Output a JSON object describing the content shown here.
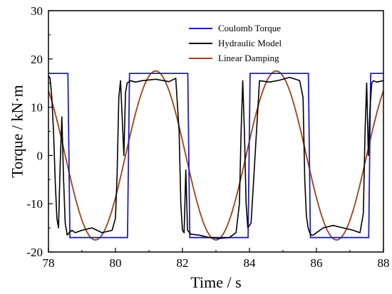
{
  "chart_data": {
    "type": "line",
    "title": "",
    "xlabel": "Time / s",
    "ylabel": "Torque / kN·m",
    "xlim": [
      78,
      88
    ],
    "ylim": [
      -20,
      30
    ],
    "xticks": [
      78,
      80,
      82,
      84,
      86,
      88
    ],
    "yticks": [
      -20,
      -10,
      0,
      10,
      20,
      30
    ],
    "grid": false,
    "legend_position": "top-right",
    "series": [
      {
        "name": "Coulomb Torque",
        "color": "#1f1fbf",
        "x": [
          78.0,
          78.58,
          78.64,
          80.36,
          80.42,
          82.16,
          82.22,
          83.96,
          84.02,
          85.76,
          85.82,
          87.56,
          87.62,
          88.0
        ],
        "y": [
          17,
          17,
          -17,
          -17,
          17,
          17,
          -17,
          -17,
          17,
          17,
          -17,
          -17,
          17,
          17
        ]
      },
      {
        "name": "Hydraulic Model",
        "color": "#000000",
        "x": [
          78.0,
          78.05,
          78.1,
          78.15,
          78.2,
          78.25,
          78.3,
          78.35,
          78.4,
          78.45,
          78.5,
          78.56,
          78.62,
          78.7,
          78.8,
          79.0,
          79.3,
          79.6,
          79.9,
          80.0,
          80.05,
          80.1,
          80.15,
          80.2,
          80.25,
          80.3,
          80.35,
          80.45,
          80.6,
          80.8,
          81.2,
          81.6,
          81.8,
          81.9,
          81.95,
          82.0,
          82.05,
          82.1,
          82.15,
          82.25,
          82.5,
          82.8,
          83.1,
          83.4,
          83.6,
          83.7,
          83.75,
          83.8,
          83.85,
          83.9,
          83.95,
          84.05,
          84.3,
          84.6,
          84.9,
          85.2,
          85.5,
          85.6,
          85.65,
          85.7,
          85.75,
          85.8,
          85.85,
          85.9,
          86.2,
          86.5,
          86.8,
          87.1,
          87.3,
          87.4,
          87.45,
          87.5,
          87.55,
          87.6,
          87.65,
          87.7,
          87.8,
          88.0
        ],
        "y": [
          16.5,
          16,
          12,
          5,
          -5,
          -13,
          -15,
          -2,
          8,
          -5,
          -14,
          -16.5,
          -16,
          -15.5,
          -16,
          -15.5,
          -15,
          -16,
          -15.5,
          -13,
          -4,
          12,
          15.5,
          8,
          0,
          13,
          15,
          15.5,
          15.2,
          15.5,
          15.8,
          15.3,
          16,
          5,
          -10,
          -15.5,
          -16,
          -3,
          -15.5,
          -16.3,
          -16.5,
          -17,
          -17.2,
          -17,
          -16,
          -10,
          5,
          15.5,
          5,
          -10,
          -15,
          -14,
          15.5,
          15.2,
          15.6,
          16.2,
          15.5,
          12,
          -5,
          -12.5,
          -15,
          -16,
          -16.5,
          -16.5,
          -15,
          -14.5,
          -15,
          -15.5,
          -16,
          -12,
          5,
          15,
          0,
          10,
          15,
          15.5,
          15.2,
          15.5
        ]
      },
      {
        "name": "Linear Damping",
        "color": "#a0401a",
        "amplitude": 17.5,
        "period": 3.6,
        "zero_crossing": 80.3
      }
    ]
  }
}
